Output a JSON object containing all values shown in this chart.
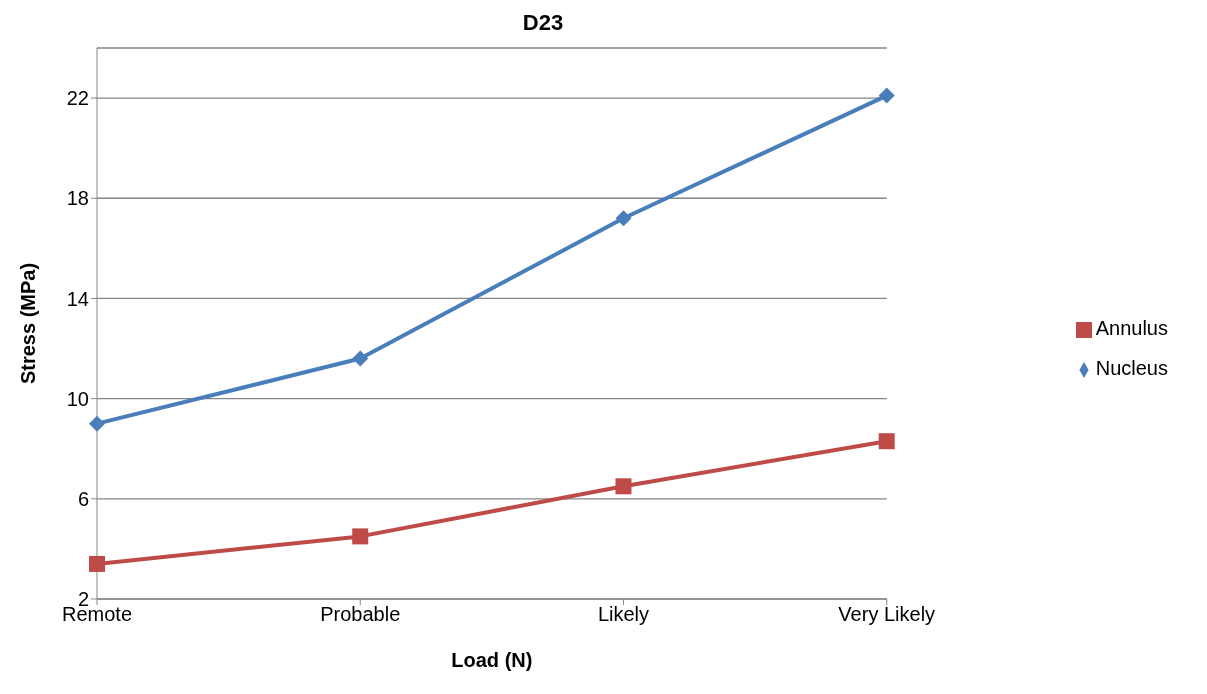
{
  "chart_data": {
    "type": "line",
    "title": "D23",
    "xlabel": "Load (N)",
    "ylabel": "Stress (MPa)",
    "categories": [
      "Remote",
      "Probable",
      "Likely",
      "Very Likely"
    ],
    "series": [
      {
        "name": "Nucleus",
        "color": "#4a7ebb",
        "marker": "diamond",
        "values": [
          9.0,
          11.6,
          17.2,
          22.1
        ]
      },
      {
        "name": "Annulus",
        "color": "#be4b48",
        "marker": "square",
        "values": [
          3.4,
          4.5,
          6.5,
          8.3
        ]
      }
    ],
    "ylim": [
      2,
      24
    ],
    "yticks": [
      2,
      6,
      10,
      14,
      18,
      22
    ],
    "grid": "y",
    "legend": "right",
    "line_style": "solid"
  }
}
